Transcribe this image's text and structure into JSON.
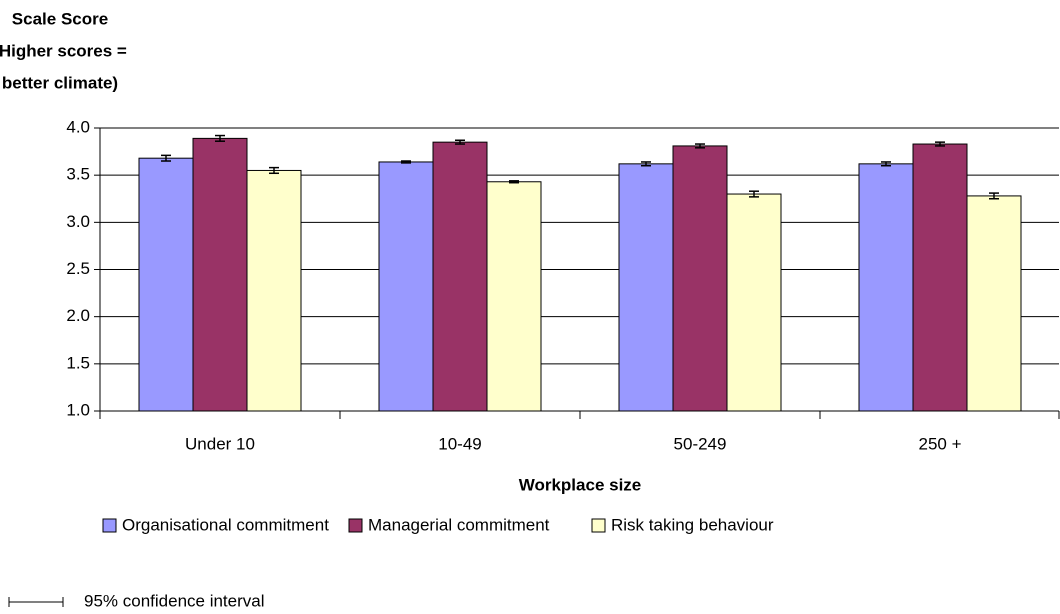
{
  "chart_data": {
    "type": "bar",
    "y_label": [
      "Scale Score",
      "(Higher scores =",
      "better climate)"
    ],
    "x_label": "Workplace size",
    "categories": [
      "Under 10",
      "10-49",
      "50-249",
      "250 +"
    ],
    "series": [
      {
        "name": "Organisational commitment",
        "color": "#9999ff",
        "values": [
          3.68,
          3.64,
          3.62,
          3.62
        ],
        "errors": [
          0.03,
          0.01,
          0.02,
          0.02
        ]
      },
      {
        "name": "Managerial commitment",
        "color": "#993366",
        "values": [
          3.89,
          3.85,
          3.81,
          3.83
        ],
        "errors": [
          0.03,
          0.02,
          0.02,
          0.02
        ]
      },
      {
        "name": "Risk taking behaviour",
        "color": "#ffffcc",
        "values": [
          3.55,
          3.43,
          3.3,
          3.28
        ],
        "errors": [
          0.03,
          0.01,
          0.03,
          0.03
        ]
      }
    ],
    "ylim": [
      1.0,
      4.0
    ],
    "yticks": [
      {
        "value": 1,
        "label": "1.0"
      },
      {
        "value": 1.5,
        "label": "1.5"
      },
      {
        "value": 2,
        "label": "2.0"
      },
      {
        "value": 2.5,
        "label": "2.5"
      },
      {
        "value": 3,
        "label": "3.0"
      },
      {
        "value": 3.5,
        "label": "3.5"
      },
      {
        "value": 4,
        "label": "4.0"
      }
    ],
    "grid": true,
    "legend": "bottom",
    "note": "95% confidence interval"
  }
}
